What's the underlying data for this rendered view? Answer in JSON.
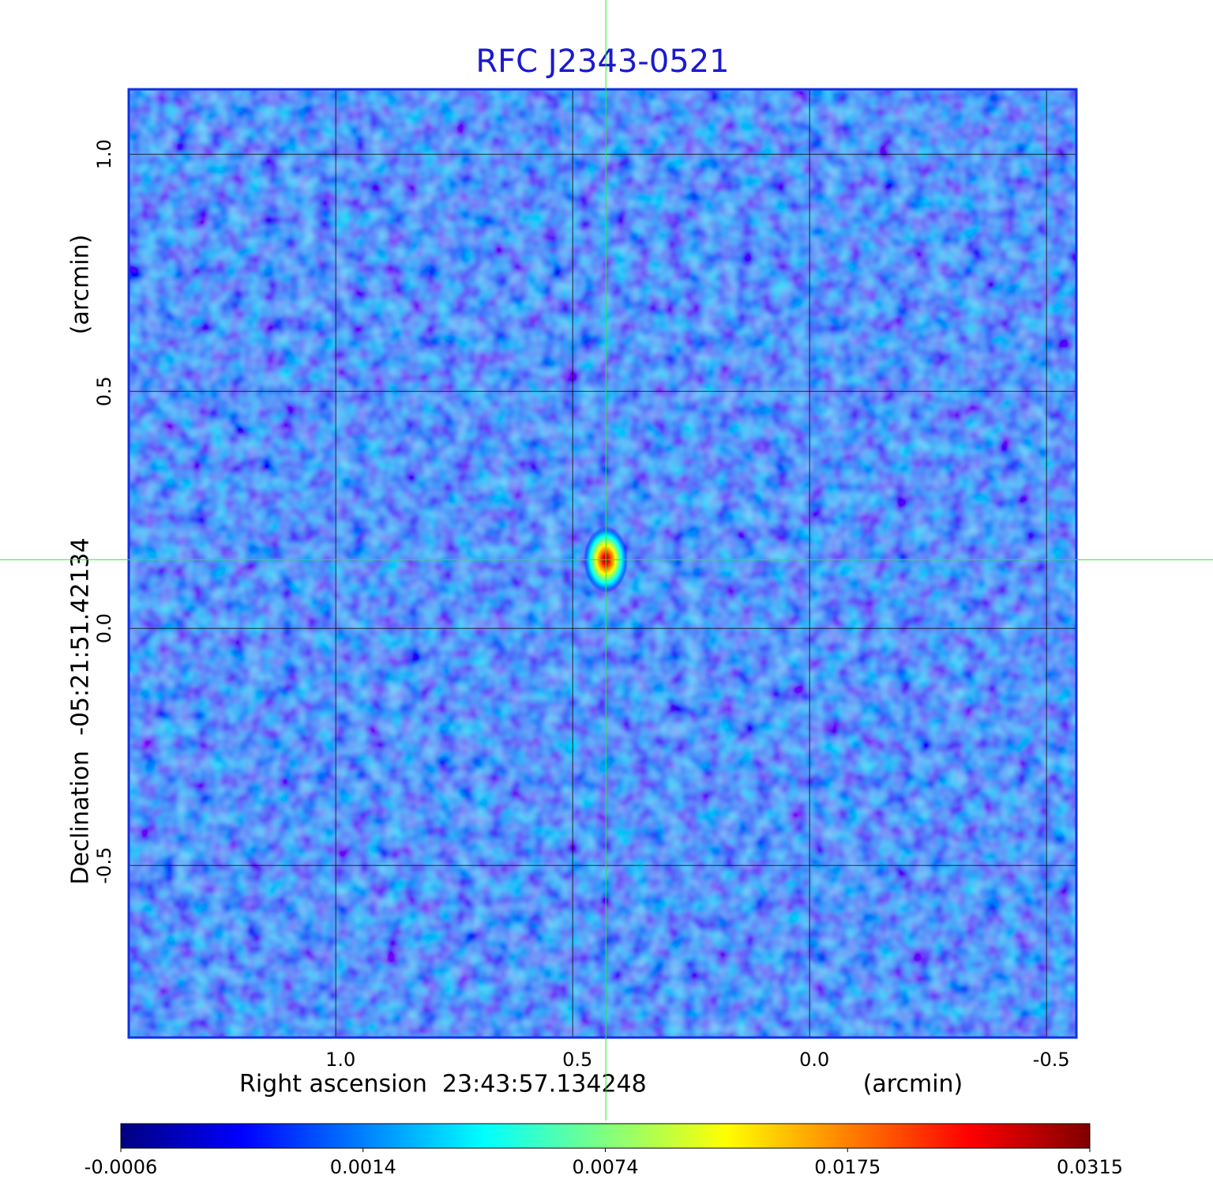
{
  "chart_data": {
    "type": "image",
    "title": "RFC J2343-0521",
    "xlabel": "Right ascension  23:43:57.134248",
    "xunit": "(arcmin)",
    "ylabel": "Declination  -05:21:51.42134",
    "yunit": "(arcmin)",
    "xlim": [
      1.437,
      -0.563
    ],
    "ylim": [
      -0.863,
      1.137
    ],
    "xticks": [
      {
        "value": 1,
        "label": "1.0"
      },
      0.5,
      {
        "value": 0,
        "label": "0.0"
      },
      -0.5
    ],
    "yticks": [
      {
        "value": 1,
        "label": "1.0"
      },
      0.5,
      {
        "value": 0,
        "label": "0.0"
      },
      -0.5
    ],
    "grid": true,
    "source": {
      "x": 0.43,
      "y": 0.145,
      "peak": 0.0315
    },
    "crosshair_color": "#22ee22",
    "colorbar": {
      "lim": [
        -0.0006,
        0.0315
      ],
      "ticks": [
        -0.0006,
        0.0014,
        0.0074,
        0.0175,
        0.0315
      ],
      "colors": [
        "#000080",
        "#0000ff",
        "#0080ff",
        "#00ffff",
        "#80ff80",
        "#ffff00",
        "#ff8000",
        "#ff0000",
        "#800000"
      ]
    }
  }
}
